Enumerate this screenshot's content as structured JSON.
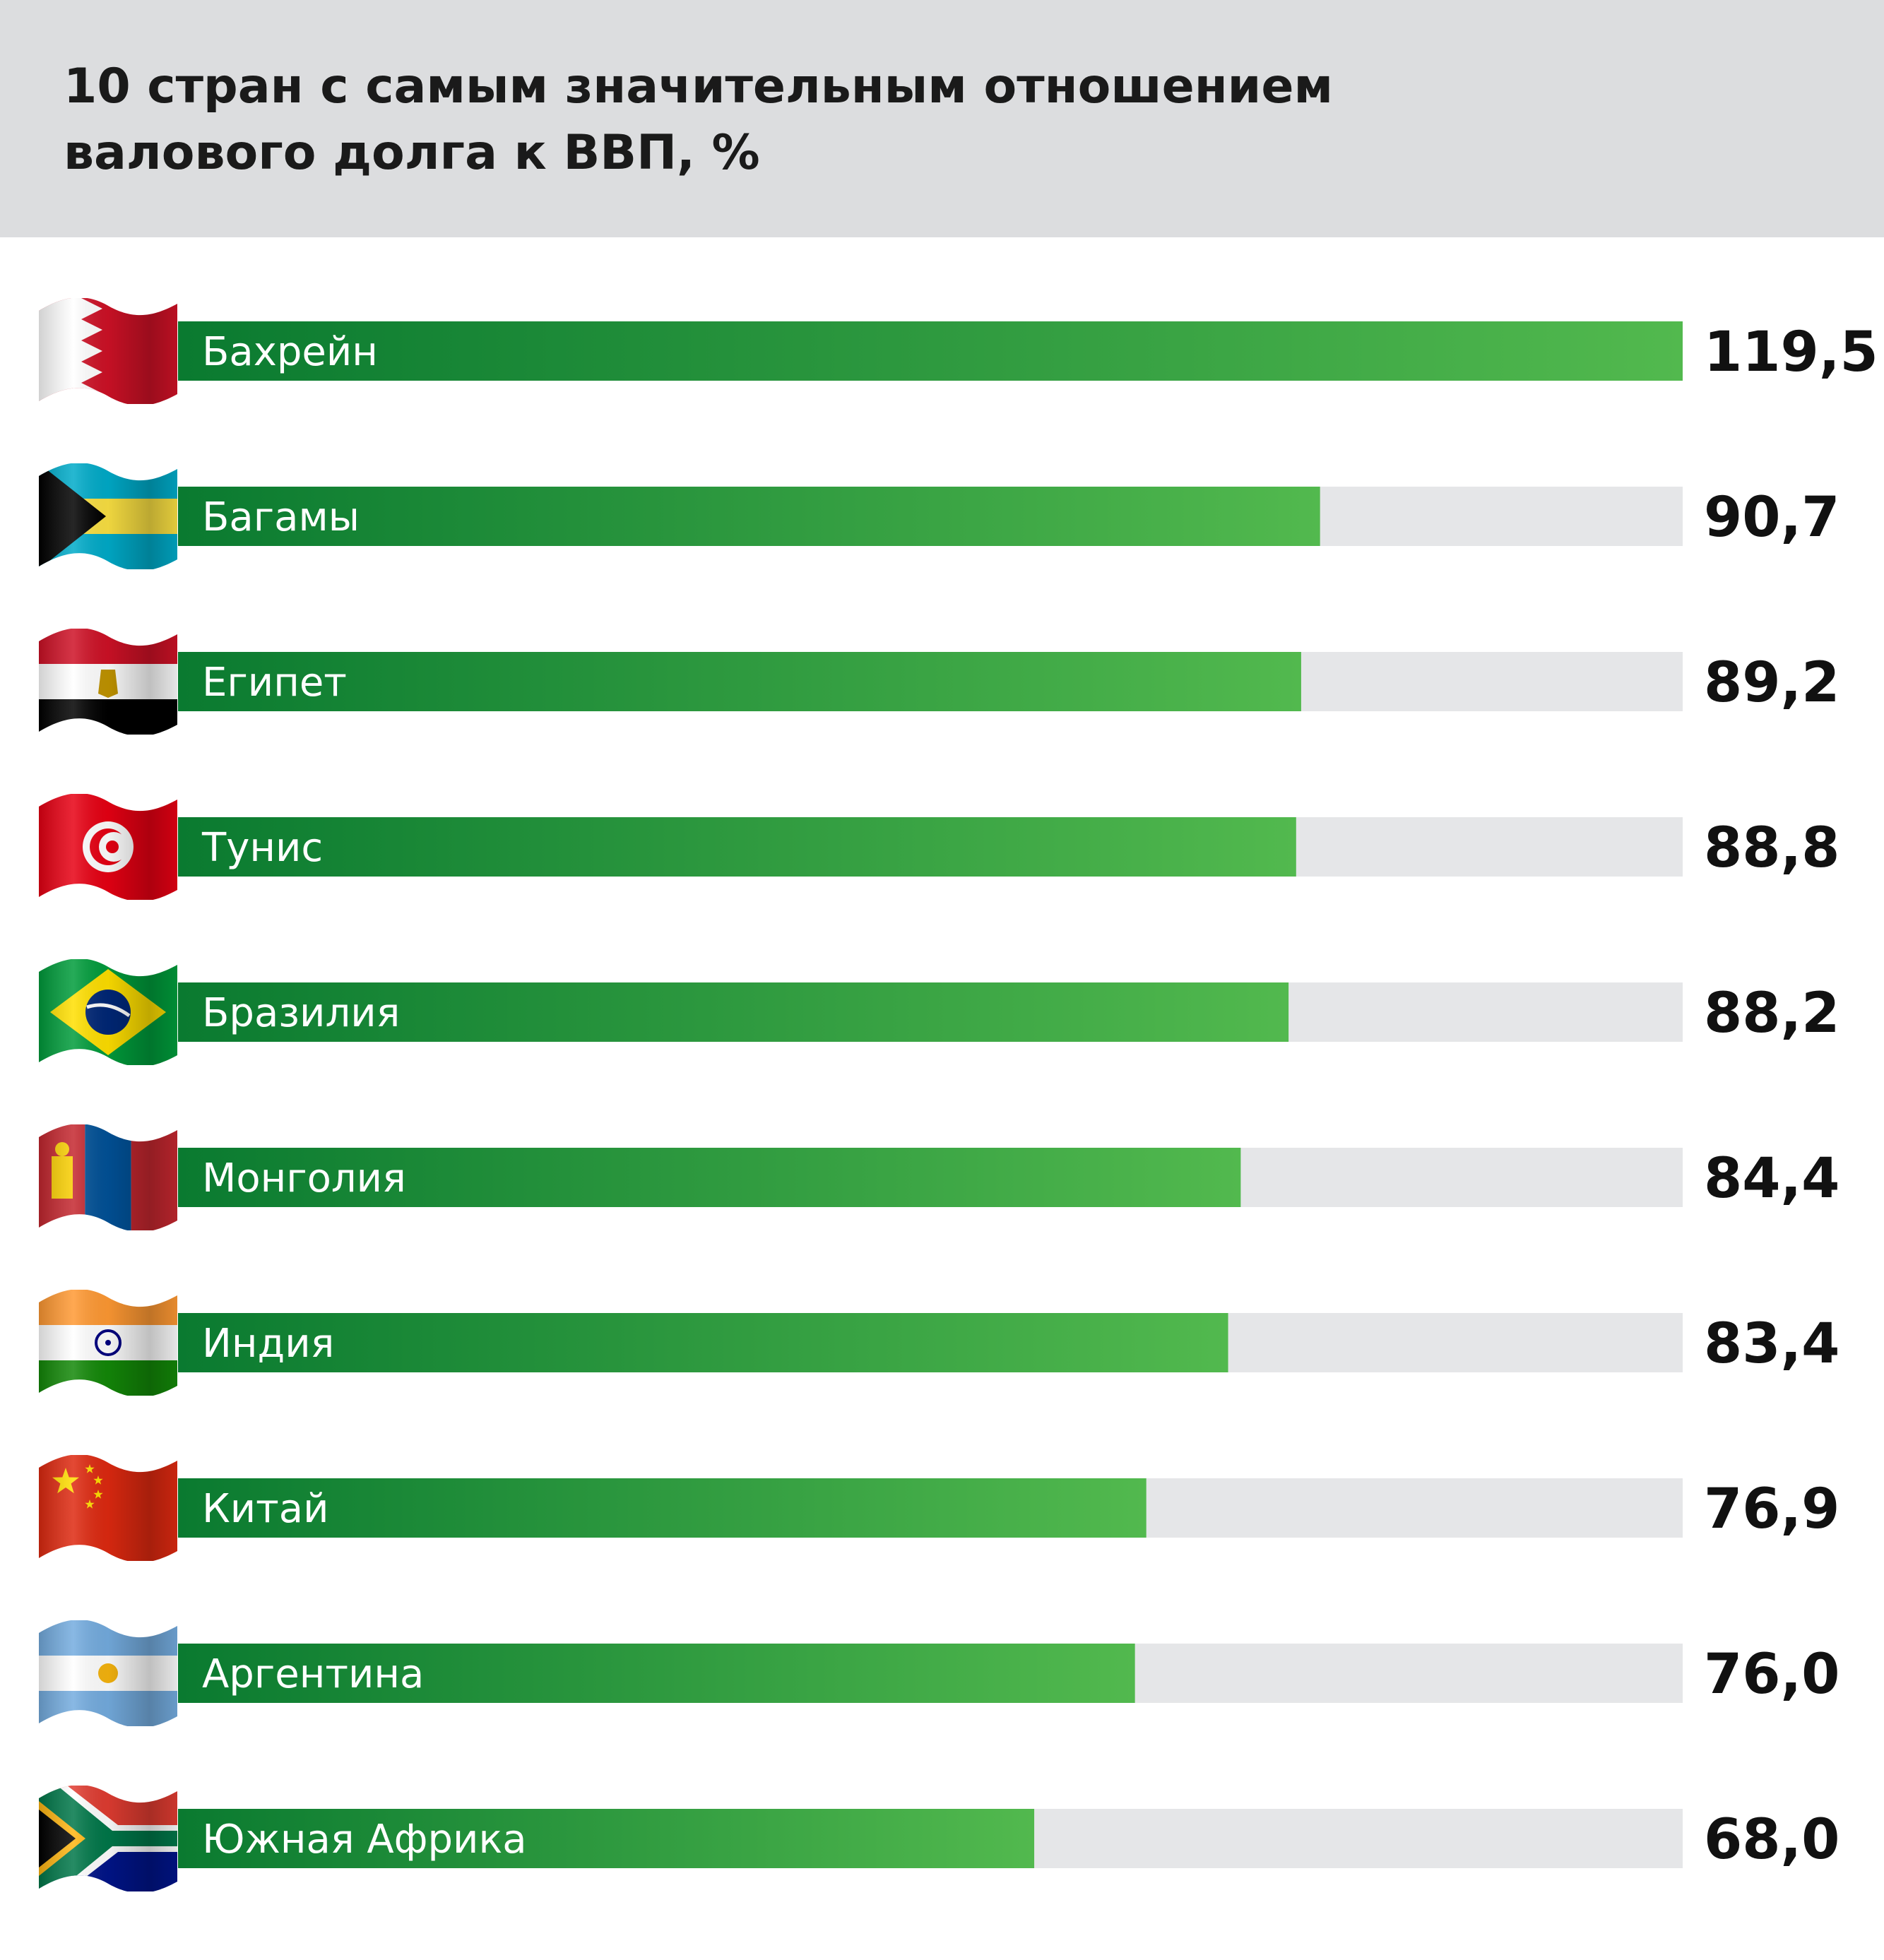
{
  "chart_data": {
    "type": "bar",
    "orientation": "horizontal",
    "title_lines": [
      "10 стран с самым значительным отношением",
      "валового долга к ВВП, %"
    ],
    "categories": [
      "Бахрейн",
      "Багамы",
      "Египет",
      "Тунис",
      "Бразилия",
      "Монголия",
      "Индия",
      "Китай",
      "Аргентина",
      "Южная Африка"
    ],
    "values": [
      119.5,
      90.7,
      89.2,
      88.8,
      88.2,
      84.4,
      83.4,
      76.9,
      76.0,
      68.0
    ],
    "value_labels": [
      "119,5",
      "90,7",
      "89,2",
      "88,8",
      "88,2",
      "84,4",
      "83,4",
      "76,9",
      "76,0",
      "68,0"
    ],
    "xlim": [
      0,
      119.5
    ],
    "flags": [
      "bahrain-flag",
      "bahamas-flag",
      "egypt-flag",
      "tunisia-flag",
      "brazil-flag",
      "mongolia-flag",
      "india-flag",
      "china-flag",
      "argentina-flag",
      "south-africa-flag"
    ],
    "colors": {
      "bar_start": "#0a7a30",
      "bar_end": "#52b94e",
      "track": "#e5e6e8",
      "header_bg": "#dcdddf"
    }
  }
}
